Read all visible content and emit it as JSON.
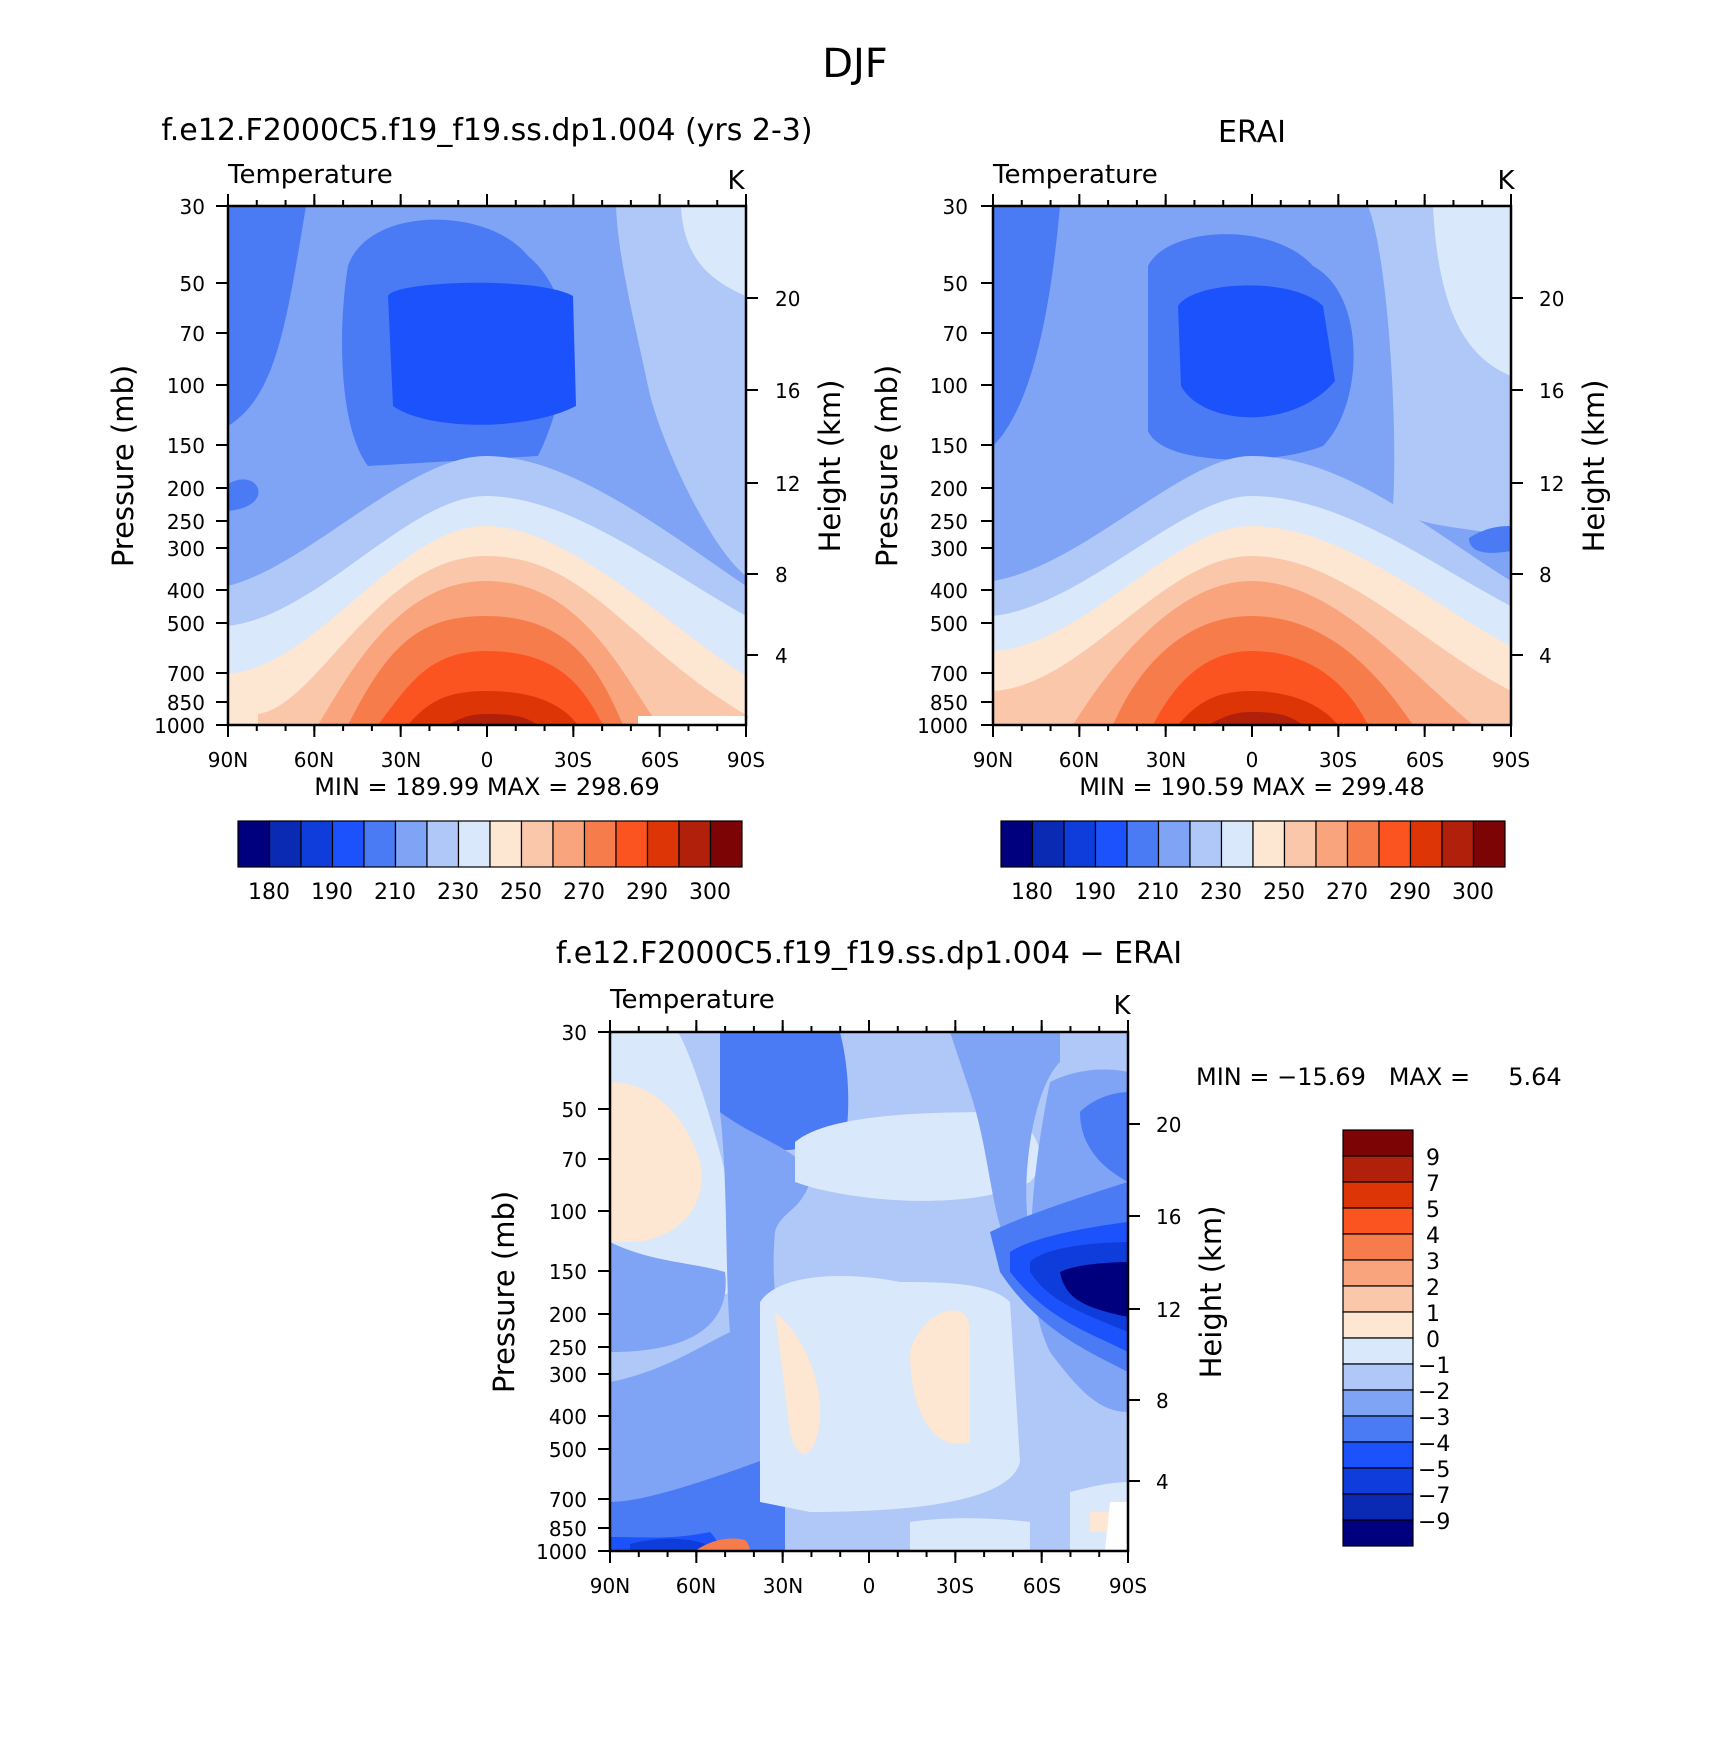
{
  "figure_title": "DJF",
  "chart_data": [
    {
      "type": "heatmap",
      "panel": "model",
      "title": "f.e12.F2000C5.f19_f19.ss.dp1.004 (yrs 2-3)",
      "left_label": "Temperature",
      "units": "K",
      "xlabel": "",
      "ylabel": "Pressure (mb)",
      "y2label": "Height (km)",
      "x_ticks": [
        "90N",
        "60N",
        "30N",
        "0",
        "30S",
        "60S",
        "90S"
      ],
      "y_ticks": [
        "30",
        "50",
        "70",
        "100",
        "150",
        "200",
        "250",
        "300",
        "400",
        "500",
        "700",
        "850",
        "1000"
      ],
      "y2_ticks": [
        "20",
        "16",
        "12",
        "8",
        "4"
      ],
      "ylim": [
        1000,
        30
      ],
      "stats": "MIN = 189.99 MAX = 298.69",
      "min": 189.99,
      "max": 298.69,
      "colorbar": {
        "levels": [
          180,
          185,
          190,
          200,
          210,
          220,
          230,
          240,
          250,
          260,
          270,
          280,
          290,
          295,
          300
        ],
        "labels": [
          "180",
          "190",
          "210",
          "230",
          "250",
          "270",
          "290",
          "300"
        ]
      }
    },
    {
      "type": "heatmap",
      "panel": "obs",
      "title": "ERAI",
      "left_label": "Temperature",
      "units": "K",
      "xlabel": "",
      "ylabel": "Pressure (mb)",
      "y2label": "Height (km)",
      "x_ticks": [
        "90N",
        "60N",
        "30N",
        "0",
        "30S",
        "60S",
        "90S"
      ],
      "y_ticks": [
        "30",
        "50",
        "70",
        "100",
        "150",
        "200",
        "250",
        "300",
        "400",
        "500",
        "700",
        "850",
        "1000"
      ],
      "y2_ticks": [
        "20",
        "16",
        "12",
        "8",
        "4"
      ],
      "ylim": [
        1000,
        30
      ],
      "stats": "MIN = 190.59 MAX = 299.48",
      "min": 190.59,
      "max": 299.48,
      "colorbar": {
        "levels": [
          180,
          185,
          190,
          200,
          210,
          220,
          230,
          240,
          250,
          260,
          270,
          280,
          290,
          295,
          300
        ],
        "labels": [
          "180",
          "190",
          "210",
          "230",
          "250",
          "270",
          "290",
          "300"
        ]
      }
    },
    {
      "type": "heatmap",
      "panel": "difference",
      "title": "f.e12.F2000C5.f19_f19.ss.dp1.004 − ERAI",
      "left_label": "Temperature",
      "units": "K",
      "xlabel": "",
      "ylabel": "Pressure (mb)",
      "y2label": "Height (km)",
      "x_ticks": [
        "90N",
        "60N",
        "30N",
        "0",
        "30S",
        "60S",
        "90S"
      ],
      "y_ticks": [
        "30",
        "50",
        "70",
        "100",
        "150",
        "200",
        "250",
        "300",
        "400",
        "500",
        "700",
        "850",
        "1000"
      ],
      "y2_ticks": [
        "20",
        "16",
        "12",
        "8",
        "4"
      ],
      "ylim": [
        1000,
        30
      ],
      "stats": "MIN = −15.69   MAX =     5.64",
      "min": -15.69,
      "max": 5.64,
      "colorbar": {
        "levels": [
          9,
          7,
          5,
          4,
          3,
          2,
          1,
          0,
          -1,
          -2,
          -3,
          -4,
          -5,
          -7,
          -9
        ],
        "labels": [
          "9",
          "7",
          "5",
          "4",
          "3",
          "2",
          "1",
          "0",
          "−1",
          "−2",
          "−3",
          "−4",
          "−5",
          "−7",
          "−9"
        ]
      }
    }
  ],
  "palette": [
    "#00007f",
    "#0a2ab4",
    "#0f3ddc",
    "#1c52fb",
    "#4a7bf5",
    "#7fa3f5",
    "#b0c8f8",
    "#d9e8fa",
    "#fde6d2",
    "#fbc7aa",
    "#f9a47d",
    "#f77c4c",
    "#fb5421",
    "#dd3506",
    "#b1200a",
    "#7d0404"
  ]
}
